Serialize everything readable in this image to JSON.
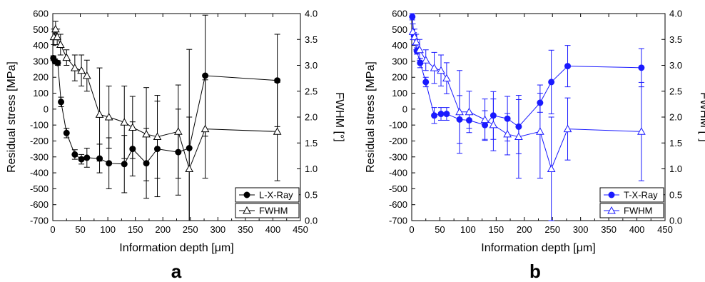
{
  "chart_data": [
    {
      "panel": "a",
      "type": "line",
      "color": "#000000",
      "xlabel": "Information depth [μm]",
      "ylabel_left": "Residual stress [MPa]",
      "ylabel_right": "FWHM [°]",
      "xlim": [
        0,
        450
      ],
      "ylim_left": [
        -700,
        600
      ],
      "ylim_right": [
        0.0,
        4.0
      ],
      "x_ticks": [
        "0",
        "50",
        "100",
        "150",
        "200",
        "250",
        "300",
        "350",
        "400",
        "450"
      ],
      "y_left_ticks": [
        "-700",
        "-600",
        "-500",
        "-400",
        "-300",
        "-200",
        "-100",
        "0",
        "100",
        "200",
        "300",
        "400",
        "500",
        "600"
      ],
      "y_right_ticks": [
        "0.0",
        "0.5",
        "1.0",
        "1.5",
        "2.0",
        "2.5",
        "3.0",
        "3.5",
        "4.0"
      ],
      "legend_position": "bottom-right",
      "series": [
        {
          "name": "L-X-Ray",
          "axis": "left",
          "marker": "filled-circle",
          "x": [
            1,
            4,
            9,
            15,
            25,
            40,
            52,
            62,
            85,
            102,
            130,
            145,
            170,
            190,
            228,
            248,
            277,
            408
          ],
          "y": [
            320,
            300,
            290,
            45,
            -150,
            -285,
            -315,
            -305,
            -310,
            -340,
            -345,
            -250,
            -340,
            -250,
            -270,
            -245,
            210,
            180
          ],
          "err": [
            15,
            15,
            15,
            30,
            30,
            30,
            30,
            60,
            90,
            160,
            180,
            170,
            220,
            300,
            270,
            620,
            380,
            290
          ]
        },
        {
          "name": "FWHM",
          "axis": "right",
          "marker": "open-triangle",
          "x": [
            2,
            5,
            8,
            14,
            25,
            40,
            52,
            62,
            85,
            102,
            130,
            145,
            170,
            190,
            228,
            248,
            277,
            408
          ],
          "y": [
            3.55,
            3.7,
            3.55,
            3.4,
            3.15,
            2.95,
            2.9,
            2.8,
            2.05,
            2.0,
            1.9,
            1.8,
            1.67,
            1.62,
            1.72,
            1.0,
            1.77,
            1.72
          ],
          "err": [
            0.15,
            0.15,
            0.15,
            0.2,
            0.15,
            0.25,
            0.3,
            0.3,
            0.9,
            0.6,
            0.7,
            0.6,
            0.9,
            0.8,
            0.9,
            1.0,
            0.95,
            0.95
          ]
        }
      ]
    },
    {
      "panel": "b",
      "type": "line",
      "color": "#1a1aff",
      "xlabel": "Information depth [μm]",
      "ylabel_left": "Residual stress [MPa]",
      "ylabel_right": "FWHM [°]",
      "xlim": [
        0,
        450
      ],
      "ylim_left": [
        -700,
        600
      ],
      "ylim_right": [
        0.0,
        4.0
      ],
      "x_ticks": [
        "0",
        "50",
        "100",
        "150",
        "200",
        "250",
        "300",
        "350",
        "400",
        "450"
      ],
      "y_left_ticks": [
        "-700",
        "-600",
        "-500",
        "-400",
        "-300",
        "-200",
        "-100",
        "0",
        "100",
        "200",
        "300",
        "400",
        "500",
        "600"
      ],
      "y_right_ticks": [
        "0.0",
        "0.5",
        "1.0",
        "1.5",
        "2.0",
        "2.5",
        "3.0",
        "3.5",
        "4.0"
      ],
      "legend_position": "bottom-right",
      "series": [
        {
          "name": "T-X-Ray",
          "axis": "left",
          "marker": "filled-circle",
          "x": [
            1,
            4,
            9,
            15,
            25,
            40,
            52,
            62,
            85,
            102,
            130,
            145,
            170,
            190,
            228,
            248,
            277,
            408
          ],
          "y": [
            580,
            460,
            365,
            290,
            170,
            -40,
            -30,
            -30,
            -65,
            -70,
            -100,
            -40,
            -60,
            -110,
            40,
            170,
            270,
            260
          ],
          "err": [
            20,
            20,
            20,
            30,
            30,
            50,
            40,
            40,
            150,
            50,
            90,
            150,
            140,
            170,
            60,
            200,
            130,
            120
          ]
        },
        {
          "name": "FWHM",
          "axis": "right",
          "marker": "open-triangle",
          "x": [
            2,
            5,
            8,
            14,
            25,
            40,
            52,
            62,
            85,
            102,
            130,
            145,
            170,
            190,
            228,
            248,
            277,
            408
          ],
          "y": [
            3.65,
            3.55,
            3.45,
            3.3,
            3.1,
            2.95,
            2.9,
            2.75,
            2.1,
            2.1,
            1.95,
            1.85,
            1.67,
            1.62,
            1.72,
            1.0,
            1.77,
            1.72
          ],
          "err": [
            0.15,
            0.15,
            0.15,
            0.2,
            0.2,
            0.3,
            0.3,
            0.3,
            0.8,
            0.4,
            0.4,
            0.5,
            0.4,
            0.8,
            0.9,
            1.0,
            0.6,
            0.95
          ]
        }
      ]
    }
  ]
}
